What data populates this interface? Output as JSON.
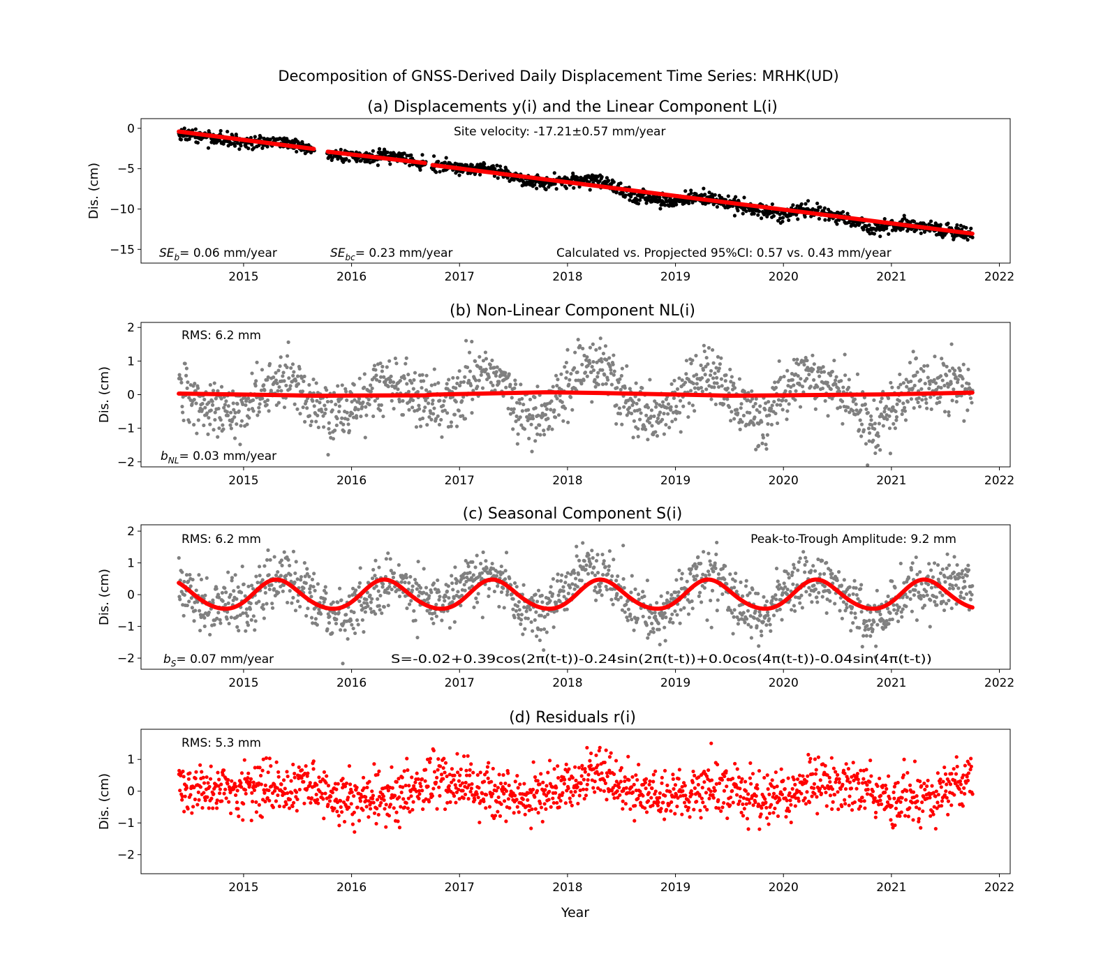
{
  "figure": {
    "suptitle": "Decomposition of GNSS-Derived Daily Displacement Time Series: MRHK(UD)",
    "xlabel": "Year"
  },
  "colors": {
    "observed": "#000000",
    "gray_points": "#808080",
    "fit": "#ff0000",
    "residual_points": "#ff0000"
  },
  "chart_data": [
    {
      "type": "scatter",
      "panel": "a",
      "title": "(a) Displacements y(i) and the Linear Component L(i)",
      "xlabel": "",
      "ylabel": "Dis. (cm)",
      "xlim": [
        2014.05,
        2022.1
      ],
      "ylim": [
        -16.7,
        1.2
      ],
      "xticks": [
        2015,
        2016,
        2017,
        2018,
        2019,
        2020,
        2021,
        2022
      ],
      "yticks": [
        0,
        -5,
        -10,
        -15
      ],
      "series": [
        {
          "role": "observed",
          "marker": "point",
          "x": [
            2014.4,
            2014.6,
            2014.8,
            2015.0,
            2015.2,
            2015.4,
            2015.6,
            2015.8,
            2016.0,
            2016.2,
            2016.4,
            2016.6,
            2016.8,
            2017.0,
            2017.2,
            2017.4,
            2017.6,
            2017.8,
            2018.0,
            2018.2,
            2018.4,
            2018.6,
            2018.8,
            2019.0,
            2019.2,
            2019.4,
            2019.6,
            2019.8,
            2020.0,
            2020.2,
            2020.4,
            2020.6,
            2020.8,
            2021.0,
            2021.2,
            2021.4,
            2021.6,
            2021.75
          ],
          "y": [
            -0.5,
            -0.9,
            -1.4,
            -1.7,
            -1.8,
            -1.6,
            -2.6,
            -3.0,
            -3.6,
            -3.5,
            -3.4,
            -4.2,
            -4.6,
            -5.0,
            -5.0,
            -5.5,
            -6.4,
            -6.6,
            -6.6,
            -6.2,
            -7.1,
            -8.4,
            -8.8,
            -8.9,
            -8.5,
            -9.0,
            -9.6,
            -10.2,
            -10.6,
            -10.1,
            -10.6,
            -11.3,
            -12.4,
            -12.1,
            -12.0,
            -12.4,
            -12.9,
            -13.2
          ],
          "y_spread_cm": 1.0
        },
        {
          "role": "linear_fit",
          "type": "line",
          "segments": [
            {
              "x": [
                2014.4,
                2015.65
              ],
              "y": [
                -0.4,
                -2.55
              ]
            },
            {
              "x": [
                2015.78,
                2016.68
              ],
              "y": [
                -2.9,
                -4.3
              ]
            },
            {
              "x": [
                2016.75,
                2021.75
              ],
              "y": [
                -4.55,
                -13.05
              ]
            }
          ]
        }
      ],
      "gaps": [
        [
          2015.66,
          2015.77
        ],
        [
          2016.69,
          2016.74
        ]
      ],
      "annotations": {
        "velocity": "Site velocity: -17.21±0.57 mm/year",
        "se_b_symbol": "SE",
        "se_b_subscript": "b",
        "se_b_value": "= 0.06 mm/year",
        "se_bc_symbol": "SE",
        "se_bc_subscript": "bc",
        "se_bc_value": "= 0.23 mm/year",
        "ci": "Calculated vs. Propjected 95%CI: 0.57 vs. 0.43 mm/year"
      }
    },
    {
      "type": "scatter",
      "panel": "b",
      "title": "(b) Non-Linear Component NL(i)",
      "xlabel": "",
      "ylabel": "Dis. (cm)",
      "xlim": [
        2014.05,
        2022.1
      ],
      "ylim": [
        -2.15,
        2.15
      ],
      "xticks": [
        2015,
        2016,
        2017,
        2018,
        2019,
        2020,
        2021,
        2022
      ],
      "yticks": [
        2,
        1,
        0,
        -1,
        -2
      ],
      "point_envelope": {
        "x": [
          2014.4,
          2014.6,
          2014.8,
          2015.0,
          2015.2,
          2015.4,
          2015.6,
          2015.8,
          2016.0,
          2016.2,
          2016.4,
          2016.6,
          2016.8,
          2017.0,
          2017.2,
          2017.4,
          2017.6,
          2017.8,
          2018.0,
          2018.2,
          2018.4,
          2018.6,
          2018.8,
          2019.0,
          2019.2,
          2019.4,
          2019.6,
          2019.8,
          2020.0,
          2020.2,
          2020.4,
          2020.6,
          2020.8,
          2021.0,
          2021.2,
          2021.4,
          2021.6,
          2021.75
        ],
        "y": [
          0.3,
          -0.2,
          -0.4,
          -0.3,
          0.2,
          0.5,
          0.0,
          -0.6,
          -0.5,
          0.1,
          0.4,
          0.0,
          -0.3,
          0.2,
          0.6,
          0.4,
          -0.6,
          -0.5,
          0.3,
          0.9,
          0.5,
          -0.4,
          -0.7,
          -0.3,
          0.6,
          0.4,
          -0.3,
          -0.8,
          0.1,
          0.6,
          0.3,
          0.0,
          -0.9,
          -0.5,
          0.3,
          0.2,
          0.4,
          0.1
        ],
        "spread_cm": 1.0
      },
      "series": [
        {
          "role": "fit",
          "type": "line",
          "x": [
            2014.4,
            2015.65,
            2015.78,
            2016.68,
            2016.75,
            2017.8,
            2018.3,
            2019.5,
            2020.0,
            2021.0,
            2021.75
          ],
          "y": [
            0.03,
            -0.03,
            -0.03,
            -0.02,
            0.0,
            0.07,
            0.05,
            -0.03,
            -0.02,
            0.01,
            0.06
          ]
        }
      ],
      "annotations": {
        "rms": "RMS: 6.2 mm",
        "b_symbol": "b",
        "b_subscript": "NL",
        "b_value": "= 0.03 mm/year"
      }
    },
    {
      "type": "scatter",
      "panel": "c",
      "title": "(c) Seasonal Component S(i)",
      "xlabel": "",
      "ylabel": "Dis. (cm)",
      "xlim": [
        2014.05,
        2022.1
      ],
      "ylim": [
        -2.35,
        2.2
      ],
      "xticks": [
        2015,
        2016,
        2017,
        2018,
        2019,
        2020,
        2021,
        2022
      ],
      "yticks": [
        2,
        1,
        0,
        -1,
        -2
      ],
      "model": {
        "t0": 2014.4,
        "a0": -0.02,
        "a1": 0.39,
        "b1": -0.24,
        "a2": 0.0,
        "b2": -0.04
      },
      "series": [
        {
          "role": "seasonal_fit",
          "type": "line",
          "x_range": [
            2014.4,
            2021.75
          ],
          "amplitude_peak_to_trough_mm": 9.2
        }
      ],
      "annotations": {
        "rms": "RMS: 6.2 mm",
        "amplitude": "Peak-to-Trough Amplitude: 9.2 mm",
        "b_symbol": "b",
        "b_subscript": "S",
        "b_value": "= 0.07 mm/year",
        "formula": "S=-0.02+0.39cos(2π(t-t))-0.24sin(2π(t-t))+0.0cos(4π(t-t))-0.04sin(4π(t-t))"
      }
    },
    {
      "type": "scatter",
      "panel": "d",
      "title": "(d) Residuals r(i)",
      "xlabel": "Year",
      "ylabel": "Dis. (cm)",
      "xlim": [
        2014.05,
        2022.1
      ],
      "ylim": [
        -2.6,
        1.95
      ],
      "xticks": [
        2015,
        2016,
        2017,
        2018,
        2019,
        2020,
        2021,
        2022
      ],
      "yticks": [
        1,
        0,
        -1,
        -2
      ],
      "point_envelope": {
        "x": [
          2014.4,
          2014.8,
          2015.2,
          2015.6,
          2016.0,
          2016.4,
          2016.8,
          2017.2,
          2017.6,
          2018.0,
          2018.3,
          2018.6,
          2019.0,
          2019.4,
          2019.8,
          2020.2,
          2020.6,
          2021.0,
          2021.4,
          2021.75
        ],
        "y": [
          0.1,
          0.1,
          0.0,
          0.2,
          -0.3,
          -0.2,
          0.4,
          0.1,
          -0.2,
          0.2,
          0.6,
          -0.1,
          -0.1,
          0.1,
          -0.3,
          0.1,
          0.3,
          -0.2,
          -0.2,
          0.5
        ],
        "spread_cm": 0.95
      },
      "annotations": {
        "rms": "RMS: 5.3 mm"
      }
    }
  ]
}
